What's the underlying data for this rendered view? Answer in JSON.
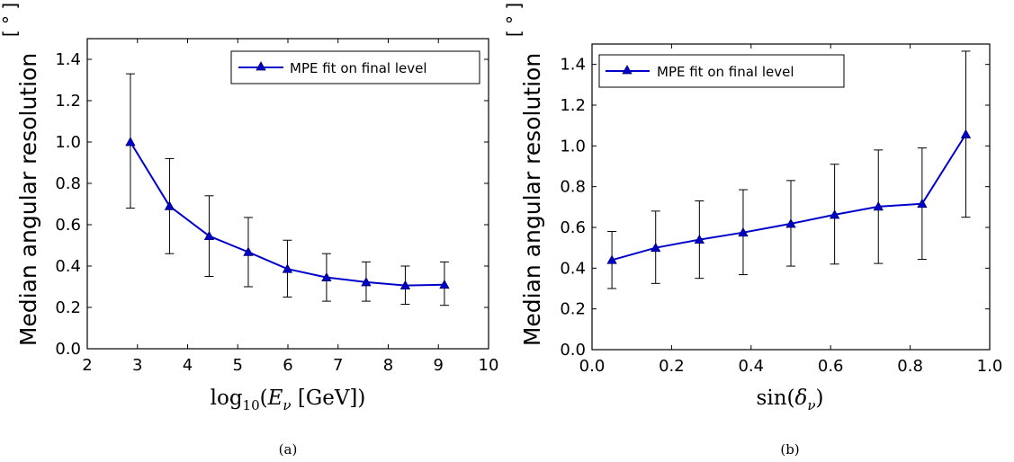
{
  "figure": {
    "caption_a": "(a)",
    "caption_b": "(b)"
  },
  "chart_data": [
    {
      "type": "line",
      "ylabel": "Median angular resolution",
      "yunit": "[ ° ]",
      "xlabel": "log10(Eν [GeV])",
      "xlim": [
        2,
        10
      ],
      "ylim": [
        0.0,
        1.5
      ],
      "xticks": [
        "2",
        "3",
        "4",
        "5",
        "6",
        "7",
        "8",
        "9",
        "10"
      ],
      "yticks": [
        "0.0",
        "0.2",
        "0.4",
        "0.6",
        "0.8",
        "1.0",
        "1.2",
        "1.4"
      ],
      "legend_position": "top-right",
      "series": [
        {
          "name": "MPE fit on final level",
          "color": "#0000cc",
          "marker": "triangle",
          "x": [
            2.86,
            3.64,
            4.43,
            5.21,
            5.99,
            6.77,
            7.56,
            8.34,
            9.12
          ],
          "y": [
            1.0,
            0.69,
            0.545,
            0.468,
            0.386,
            0.345,
            0.322,
            0.306,
            0.31
          ],
          "err_low": [
            0.68,
            0.46,
            0.35,
            0.3,
            0.25,
            0.23,
            0.23,
            0.215,
            0.21
          ],
          "err_high": [
            1.33,
            0.92,
            0.74,
            0.635,
            0.525,
            0.46,
            0.42,
            0.4,
            0.42
          ]
        }
      ]
    },
    {
      "type": "line",
      "ylabel": "Median angular resolution",
      "yunit": "[ ° ]",
      "xlabel": "sin(δν)",
      "xlim": [
        0.0,
        1.0
      ],
      "ylim": [
        0.0,
        1.5
      ],
      "xticks": [
        "0.0",
        "0.2",
        "0.4",
        "0.6",
        "0.8",
        "1.0"
      ],
      "yticks": [
        "0.0",
        "0.2",
        "0.4",
        "0.6",
        "0.8",
        "1.0",
        "1.2",
        "1.4"
      ],
      "legend_position": "top-left",
      "series": [
        {
          "name": "MPE fit on final level",
          "color": "#0000cc",
          "marker": "triangle",
          "x": [
            0.05,
            0.16,
            0.27,
            0.38,
            0.5,
            0.61,
            0.72,
            0.83,
            0.94
          ],
          "y": [
            0.44,
            0.5,
            0.54,
            0.575,
            0.618,
            0.662,
            0.702,
            0.716,
            1.057
          ],
          "err_low": [
            0.3,
            0.325,
            0.35,
            0.368,
            0.41,
            0.42,
            0.423,
            0.443,
            0.65
          ],
          "err_high": [
            0.58,
            0.68,
            0.73,
            0.785,
            0.83,
            0.91,
            0.98,
            0.99,
            1.465
          ]
        }
      ]
    }
  ]
}
